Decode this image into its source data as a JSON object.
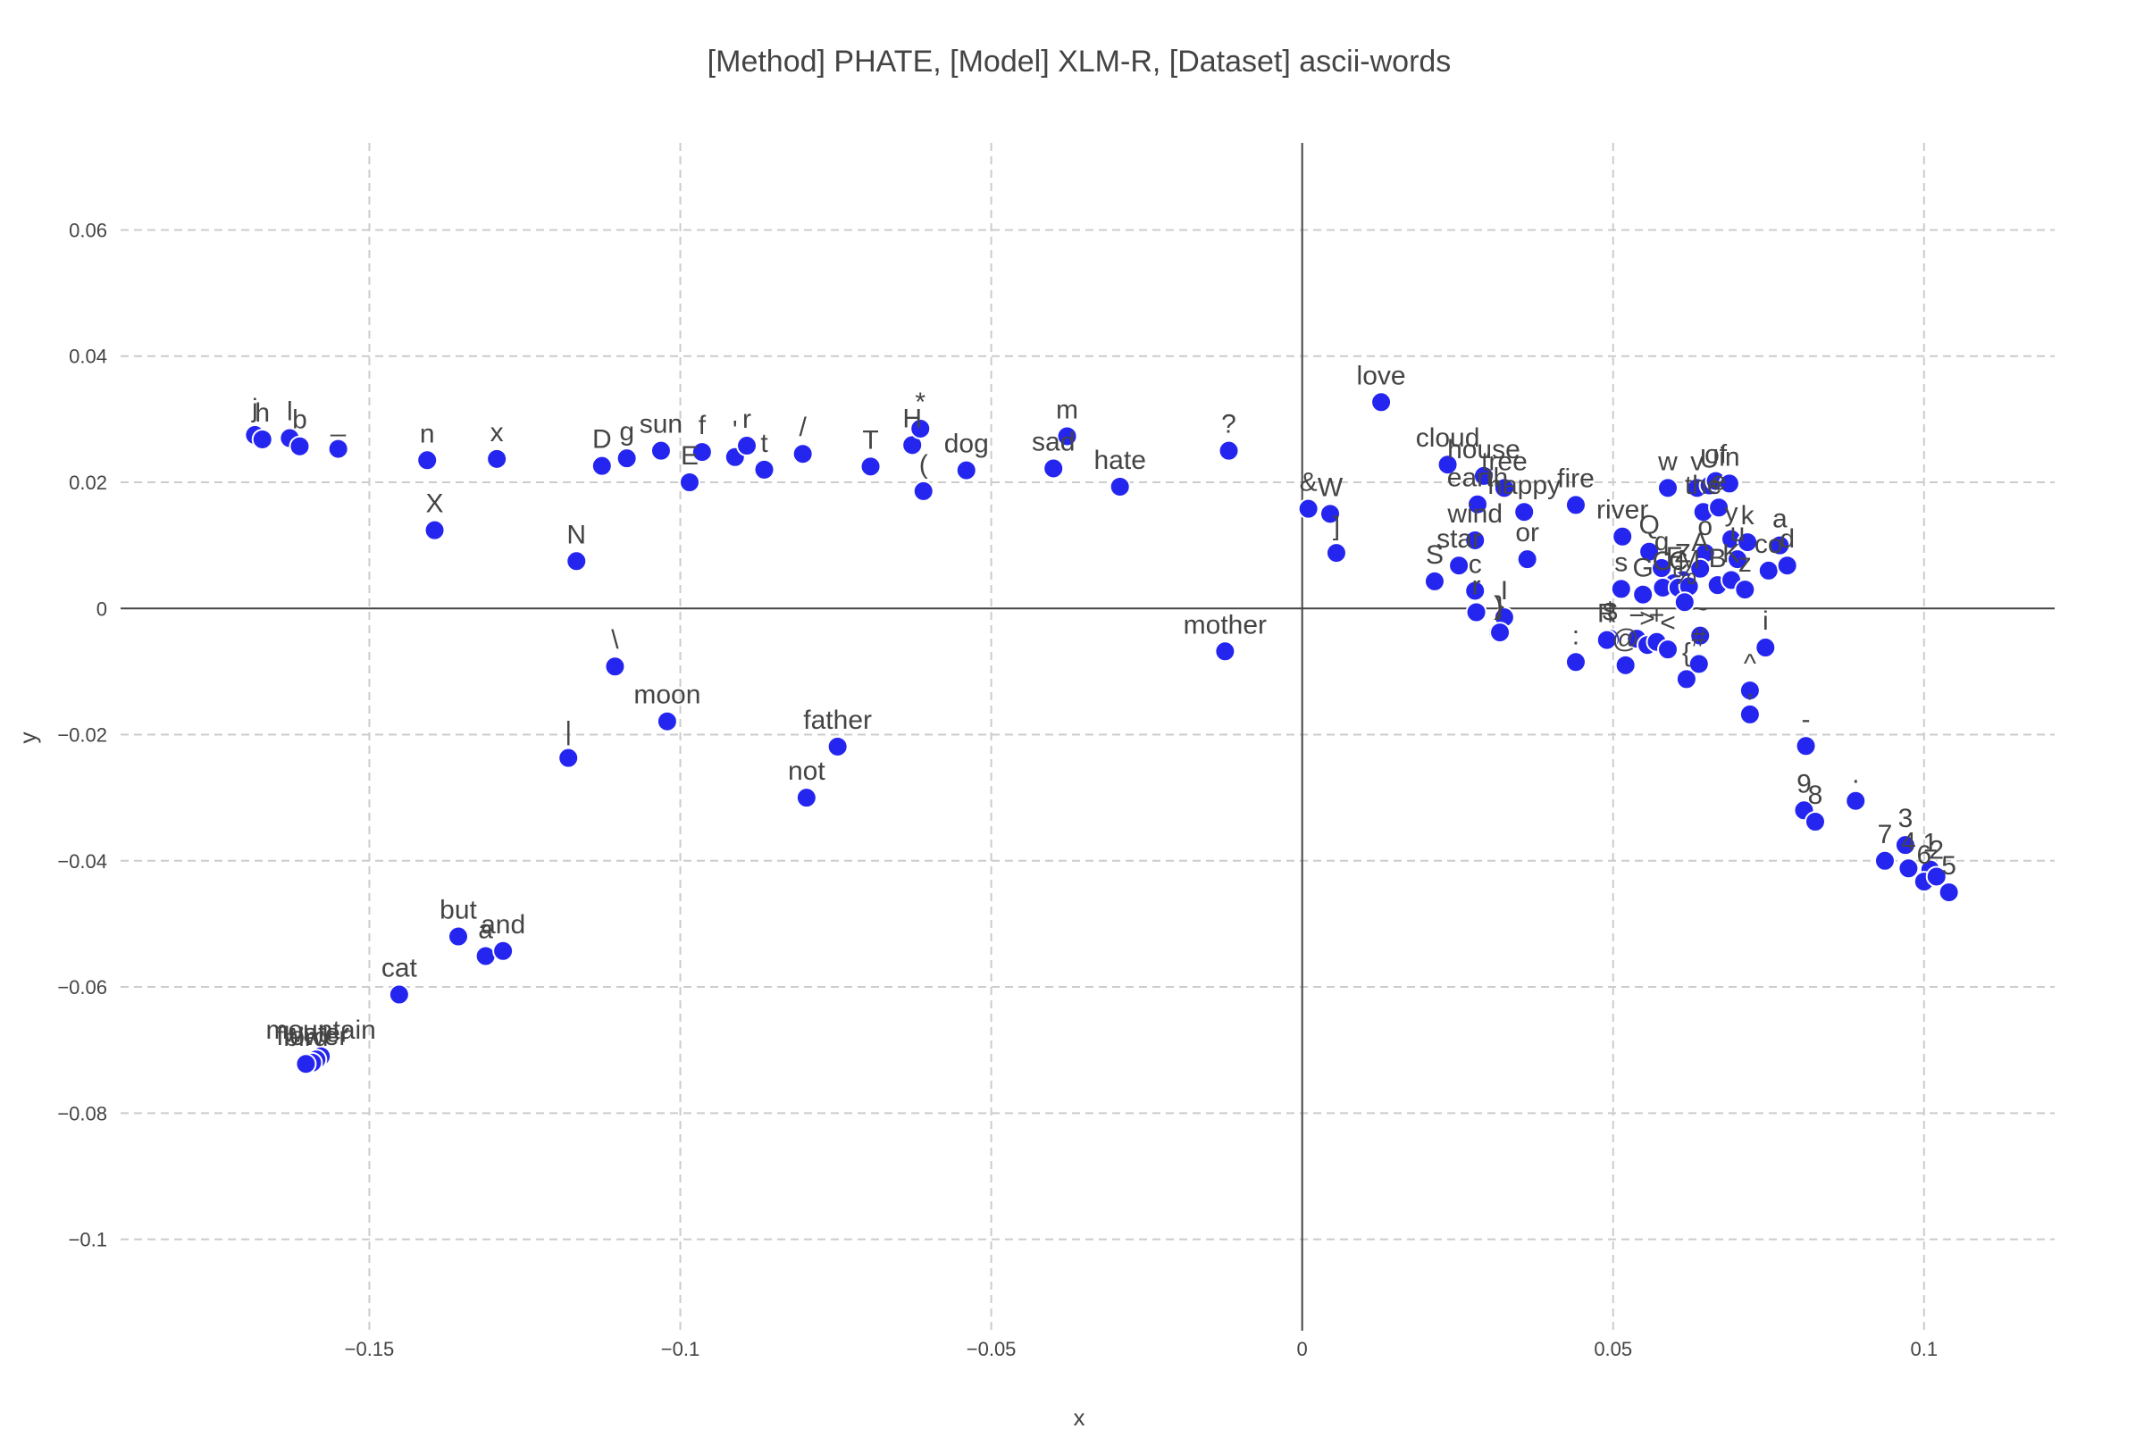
{
  "chart_data": {
    "type": "scatter",
    "title": "[Method] PHATE, [Model] XLM-R, [Dataset] ascii-words",
    "xlabel": "x",
    "ylabel": "y",
    "xlim": [
      -0.19,
      0.121
    ],
    "ylim": [
      -0.1145,
      0.0738
    ],
    "x_ticks": [
      {
        "value": -0.15,
        "label": "−0.15"
      },
      {
        "value": -0.1,
        "label": "−0.1"
      },
      {
        "value": -0.05,
        "label": "−0.05"
      },
      {
        "value": 0,
        "label": "0"
      },
      {
        "value": 0.05,
        "label": "0.05"
      },
      {
        "value": 0.1,
        "label": "0.1"
      }
    ],
    "y_ticks": [
      {
        "value": 0.06,
        "label": "0.06"
      },
      {
        "value": 0.04,
        "label": "0.04"
      },
      {
        "value": 0.02,
        "label": "0.02"
      },
      {
        "value": 0,
        "label": "0"
      },
      {
        "value": -0.02,
        "label": "−0.02"
      },
      {
        "value": -0.04,
        "label": "−0.04"
      },
      {
        "value": -0.06,
        "label": "−0.06"
      },
      {
        "value": -0.08,
        "label": "−0.08"
      },
      {
        "value": -0.1,
        "label": "−0.1"
      }
    ],
    "grid": true,
    "marker_color": "#2525f0",
    "points": [
      {
        "label": "j",
        "x": -0.1684,
        "y": 0.0275
      },
      {
        "label": "h",
        "x": -0.1672,
        "y": 0.0268
      },
      {
        "label": "l",
        "x": -0.1628,
        "y": 0.027
      },
      {
        "label": "b",
        "x": -0.1612,
        "y": 0.0257
      },
      {
        "label": "_",
        "x": -0.155,
        "y": 0.0253
      },
      {
        "label": "n",
        "x": -0.1407,
        "y": 0.0235
      },
      {
        "label": "x",
        "x": -0.1295,
        "y": 0.0237
      },
      {
        "label": "X",
        "x": -0.1395,
        "y": 0.0124
      },
      {
        "label": "D",
        "x": -0.1126,
        "y": 0.0226
      },
      {
        "label": "g",
        "x": -0.1086,
        "y": 0.0238
      },
      {
        "label": "sun",
        "x": -0.1031,
        "y": 0.025
      },
      {
        "label": "f",
        "x": -0.0965,
        "y": 0.0248
      },
      {
        "label": "E",
        "x": -0.0985,
        "y": 0.02
      },
      {
        "label": "'",
        "x": -0.0912,
        "y": 0.024
      },
      {
        "label": "r",
        "x": -0.0893,
        "y": 0.0258
      },
      {
        "label": "t",
        "x": -0.0865,
        "y": 0.022
      },
      {
        "label": "/",
        "x": -0.0803,
        "y": 0.0245
      },
      {
        "label": "T",
        "x": -0.0694,
        "y": 0.0225
      },
      {
        "label": "H",
        "x": -0.0627,
        "y": 0.0259
      },
      {
        "label": "*",
        "x": -0.0614,
        "y": 0.0285
      },
      {
        "label": "(",
        "x": -0.0609,
        "y": 0.0186
      },
      {
        "label": "dog",
        "x": -0.054,
        "y": 0.0219
      },
      {
        "label": "m",
        "x": -0.0378,
        "y": 0.0273
      },
      {
        "label": "sad",
        "x": -0.04,
        "y": 0.0222
      },
      {
        "label": "hate",
        "x": -0.0293,
        "y": 0.0193
      },
      {
        "label": "?",
        "x": -0.0118,
        "y": 0.025
      },
      {
        "label": "N",
        "x": -0.1167,
        "y": 0.0075
      },
      {
        "label": "\\",
        "x": -0.1105,
        "y": -0.0092
      },
      {
        "label": "|",
        "x": -0.118,
        "y": -0.0237
      },
      {
        "label": "moon",
        "x": -0.1021,
        "y": -0.0179
      },
      {
        "label": "father",
        "x": -0.0747,
        "y": -0.0219
      },
      {
        "label": "not",
        "x": -0.0797,
        "y": -0.03
      },
      {
        "label": "mother",
        "x": -0.0124,
        "y": -0.0068
      },
      {
        "label": "love",
        "x": 0.0127,
        "y": 0.0327
      },
      {
        "label": "&",
        "x": 0.001,
        "y": 0.0158
      },
      {
        "label": "W",
        "x": 0.0045,
        "y": 0.015
      },
      {
        "label": "]",
        "x": 0.0055,
        "y": 0.0088
      },
      {
        "label": "cloud",
        "x": 0.0234,
        "y": 0.0228
      },
      {
        "label": "house",
        "x": 0.0292,
        "y": 0.021
      },
      {
        "label": "tree",
        "x": 0.0325,
        "y": 0.0191
      },
      {
        "label": "earth",
        "x": 0.0282,
        "y": 0.0165
      },
      {
        "label": "happy",
        "x": 0.0357,
        "y": 0.0153
      },
      {
        "label": "fire",
        "x": 0.044,
        "y": 0.0164
      },
      {
        "label": "wind",
        "x": 0.0278,
        "y": 0.0108
      },
      {
        "label": "or",
        "x": 0.0362,
        "y": 0.0078
      },
      {
        "label": "star",
        "x": 0.0252,
        "y": 0.0068
      },
      {
        "label": "S",
        "x": 0.0213,
        "y": 0.0043
      },
      {
        "label": "c",
        "x": 0.0278,
        "y": 0.0028
      },
      {
        "label": "r",
        "x": 0.028,
        "y": -0.0006
      },
      {
        "label": ")",
        "x": 0.0315,
        "y": -0.0038
      },
      {
        "label": "I",
        "x": 0.0325,
        "y": -0.0014
      },
      {
        "label": "}",
        "x": 0.0318,
        "y": -0.0038
      },
      {
        "label": "river",
        "x": 0.0515,
        "y": 0.0114
      },
      {
        "label": "Q",
        "x": 0.0558,
        "y": 0.009
      },
      {
        "label": "s",
        "x": 0.0513,
        "y": 0.0031
      },
      {
        "label": "G",
        "x": 0.0548,
        "y": 0.0022
      },
      {
        "label": "q",
        "x": 0.0578,
        "y": 0.0064
      },
      {
        "label": "Z",
        "x": 0.0612,
        "y": 0.0045
      },
      {
        "label": "F",
        "x": 0.0598,
        "y": 0.004
      },
      {
        "label": "O",
        "x": 0.058,
        "y": 0.0033
      },
      {
        "label": "C",
        "x": 0.0605,
        "y": 0.0033
      },
      {
        "label": "M",
        "x": 0.0622,
        "y": 0.0035
      },
      {
        "label": "w",
        "x": 0.0588,
        "y": 0.0191
      },
      {
        "label": "v",
        "x": 0.0635,
        "y": 0.0191
      },
      {
        "label": "U",
        "x": 0.0655,
        "y": 0.0195
      },
      {
        "label": "of",
        "x": 0.0665,
        "y": 0.0202
      },
      {
        "label": "in",
        "x": 0.0687,
        "y": 0.0198
      },
      {
        "label": "the",
        "x": 0.0645,
        "y": 0.0153
      },
      {
        "label": "e",
        "x": 0.067,
        "y": 0.016
      },
      {
        "label": "o",
        "x": 0.0648,
        "y": 0.0088
      },
      {
        "label": "y",
        "x": 0.069,
        "y": 0.011
      },
      {
        "label": "k",
        "x": 0.0716,
        "y": 0.0105
      },
      {
        "label": "u",
        "x": 0.07,
        "y": 0.0078
      },
      {
        "label": "A",
        "x": 0.064,
        "y": 0.0063
      },
      {
        "label": "B",
        "x": 0.0668,
        "y": 0.0037
      },
      {
        "label": "K",
        "x": 0.069,
        "y": 0.0045
      },
      {
        "label": "z",
        "x": 0.0712,
        "y": 0.003
      },
      {
        "label": "co",
        "x": 0.075,
        "y": 0.006
      },
      {
        "label": "a",
        "x": 0.0768,
        "y": 0.01
      },
      {
        "label": "d",
        "x": 0.078,
        "y": 0.0068
      },
      {
        "label": "%",
        "x": 0.0615,
        "y": 0.001
      },
      {
        "label": "$",
        "x": 0.0495,
        "y": -0.0048
      },
      {
        "label": "R",
        "x": 0.049,
        "y": -0.005
      },
      {
        "label": "=",
        "x": 0.0538,
        "y": -0.0048
      },
      {
        "label": ">",
        "x": 0.0555,
        "y": -0.0058
      },
      {
        "label": "+",
        "x": 0.057,
        "y": -0.0053
      },
      {
        "label": "<",
        "x": 0.0588,
        "y": -0.0065
      },
      {
        "label": "@",
        "x": 0.052,
        "y": -0.009
      },
      {
        "label": "~",
        "x": 0.064,
        "y": -0.0043
      },
      {
        "label": "{",
        "x": 0.0618,
        "y": -0.0112
      },
      {
        "label": "#",
        "x": 0.0638,
        "y": -0.0088
      },
      {
        "label": ":",
        "x": 0.044,
        "y": -0.0085
      },
      {
        "label": "i",
        "x": 0.0745,
        "y": -0.0062
      },
      {
        "label": "^",
        "x": 0.072,
        "y": -0.013
      },
      {
        "label": ",",
        "x": 0.072,
        "y": -0.0168
      },
      {
        "label": "-",
        "x": 0.081,
        "y": -0.0218
      },
      {
        "label": ".",
        "x": 0.089,
        "y": -0.0305
      },
      {
        "label": "9",
        "x": 0.0807,
        "y": -0.032
      },
      {
        "label": "8",
        "x": 0.0825,
        "y": -0.0338
      },
      {
        "label": "7",
        "x": 0.0937,
        "y": -0.04
      },
      {
        "label": "3",
        "x": 0.097,
        "y": -0.0375
      },
      {
        "label": "4",
        "x": 0.0975,
        "y": -0.0412
      },
      {
        "label": "1",
        "x": 0.101,
        "y": -0.0414
      },
      {
        "label": "6",
        "x": 0.1,
        "y": -0.0433
      },
      {
        "label": "2",
        "x": 0.102,
        "y": -0.0425
      },
      {
        "label": "5",
        "x": 0.104,
        "y": -0.045
      },
      {
        "label": "but",
        "x": -0.1357,
        "y": -0.052
      },
      {
        "label": "a",
        "x": -0.1313,
        "y": -0.0551
      },
      {
        "label": "and",
        "x": -0.1285,
        "y": -0.0543
      },
      {
        "label": "cat",
        "x": -0.1452,
        "y": -0.0612
      },
      {
        "label": "mountain",
        "x": -0.1578,
        "y": -0.071
      },
      {
        "label": "water",
        "x": -0.1585,
        "y": -0.0715
      },
      {
        "label": "flower",
        "x": -0.1592,
        "y": -0.072
      },
      {
        "label": "bird",
        "x": -0.1602,
        "y": -0.0722
      }
    ]
  }
}
